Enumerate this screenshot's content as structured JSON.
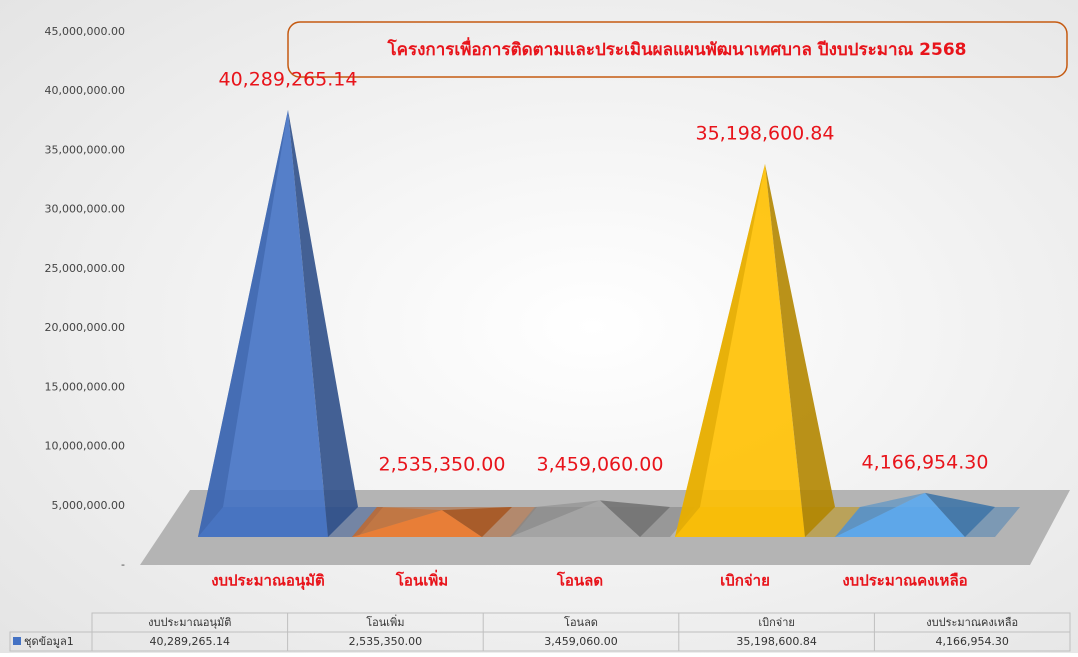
{
  "chart_data": {
    "type": "pyramid",
    "title": "โครงการเพื่อการติดตามและประเมินผลแผนพัฒนาเทศบาล ปีงบประมาณ 2568",
    "categories": [
      "งบประมาณอนุมัติ",
      "โอนเพิ่ม",
      "โอนลด",
      "เบิกจ่าย",
      "งบประมาณคงเหลือ"
    ],
    "values": [
      40289265.14,
      2535350,
      3459060,
      35198600.84,
      4166954.3
    ],
    "value_labels": [
      "40,289,265.14",
      "2,535,350.00",
      "3,459,060.00",
      "35,198,600.84",
      "4,166,954.30"
    ],
    "colors": [
      "#4472c4",
      "#ed7d31",
      "#a5a5a5",
      "#ffc000",
      "#5ba8ee"
    ],
    "ylim": [
      0,
      45000000
    ],
    "yticks": [
      {
        "value": 0,
        "label": "-"
      },
      {
        "value": 5000000,
        "label": "5,000,000.00"
      },
      {
        "value": 10000000,
        "label": "10,000,000.00"
      },
      {
        "value": 15000000,
        "label": "15,000,000.00"
      },
      {
        "value": 20000000,
        "label": "20,000,000.00"
      },
      {
        "value": 25000000,
        "label": "25,000,000.00"
      },
      {
        "value": 30000000,
        "label": "30,000,000.00"
      },
      {
        "value": 35000000,
        "label": "35,000,000.00"
      },
      {
        "value": 40000000,
        "label": "40,000,000.00"
      },
      {
        "value": 45000000,
        "label": "45,000,000.00"
      }
    ],
    "data_table": {
      "series_name": "ชุดข้อมูล1",
      "color": "#4472c4"
    }
  }
}
